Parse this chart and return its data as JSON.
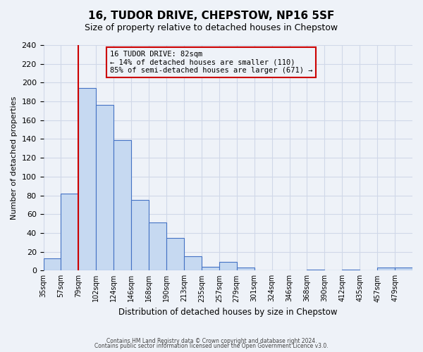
{
  "title": "16, TUDOR DRIVE, CHEPSTOW, NP16 5SF",
  "subtitle": "Size of property relative to detached houses in Chepstow",
  "xlabel": "Distribution of detached houses by size in Chepstow",
  "ylabel": "Number of detached properties",
  "bin_labels": [
    "35sqm",
    "57sqm",
    "79sqm",
    "102sqm",
    "124sqm",
    "146sqm",
    "168sqm",
    "190sqm",
    "213sqm",
    "235sqm",
    "257sqm",
    "279sqm",
    "301sqm",
    "324sqm",
    "346sqm",
    "368sqm",
    "390sqm",
    "412sqm",
    "435sqm",
    "457sqm",
    "479sqm"
  ],
  "bar_values": [
    13,
    82,
    194,
    176,
    139,
    75,
    51,
    35,
    15,
    4,
    9,
    3,
    0,
    0,
    0,
    1,
    0,
    1,
    0,
    3,
    3
  ],
  "bar_color": "#c6d9f1",
  "bar_edge_color": "#4472c4",
  "grid_color": "#d0d8e8",
  "background_color": "#eef2f8",
  "vline_x": 2,
  "vline_color": "#cc0000",
  "annotation_title": "16 TUDOR DRIVE: 82sqm",
  "annotation_line1": "← 14% of detached houses are smaller (110)",
  "annotation_line2": "85% of semi-detached houses are larger (671) →",
  "annotation_box_color": "#cc0000",
  "ylim": [
    0,
    240
  ],
  "yticks": [
    0,
    20,
    40,
    60,
    80,
    100,
    120,
    140,
    160,
    180,
    200,
    220,
    240
  ],
  "footer1": "Contains HM Land Registry data © Crown copyright and database right 2024.",
  "footer2": "Contains public sector information licensed under the Open Government Licence v3.0."
}
